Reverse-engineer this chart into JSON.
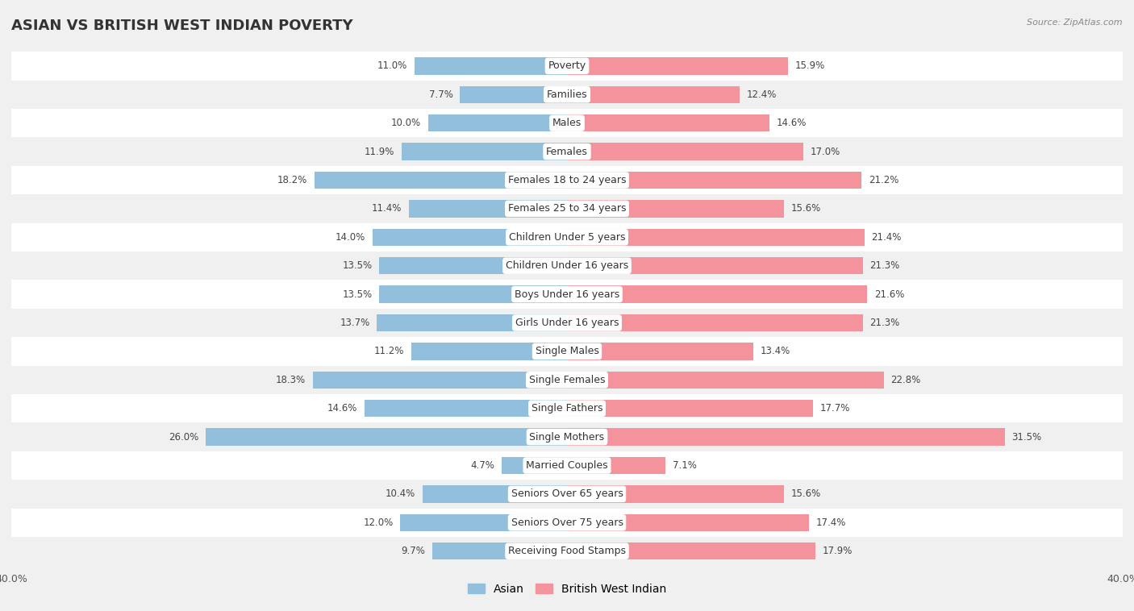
{
  "title": "ASIAN VS BRITISH WEST INDIAN POVERTY",
  "source": "Source: ZipAtlas.com",
  "categories": [
    "Poverty",
    "Families",
    "Males",
    "Females",
    "Females 18 to 24 years",
    "Females 25 to 34 years",
    "Children Under 5 years",
    "Children Under 16 years",
    "Boys Under 16 years",
    "Girls Under 16 years",
    "Single Males",
    "Single Females",
    "Single Fathers",
    "Single Mothers",
    "Married Couples",
    "Seniors Over 65 years",
    "Seniors Over 75 years",
    "Receiving Food Stamps"
  ],
  "asian_values": [
    11.0,
    7.7,
    10.0,
    11.9,
    18.2,
    11.4,
    14.0,
    13.5,
    13.5,
    13.7,
    11.2,
    18.3,
    14.6,
    26.0,
    4.7,
    10.4,
    12.0,
    9.7
  ],
  "bwi_values": [
    15.9,
    12.4,
    14.6,
    17.0,
    21.2,
    15.6,
    21.4,
    21.3,
    21.6,
    21.3,
    13.4,
    22.8,
    17.7,
    31.5,
    7.1,
    15.6,
    17.4,
    17.9
  ],
  "asian_color": "#92c0dc",
  "bwi_color": "#f4939c",
  "asian_label": "Asian",
  "bwi_label": "British West Indian",
  "axis_limit": 40.0,
  "background_color": "#f0f0f0",
  "row_bg_odd": "#f0f0f0",
  "row_bg_even": "#ffffff",
  "title_fontsize": 13,
  "label_fontsize": 9,
  "value_fontsize": 8.5
}
